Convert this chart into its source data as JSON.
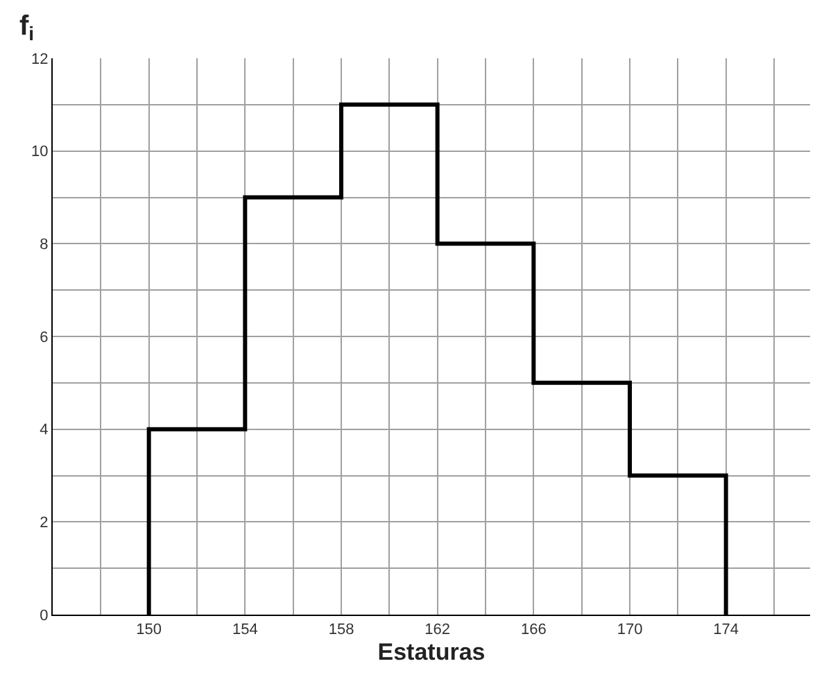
{
  "chart_data": {
    "type": "histogram",
    "xlabel": "Estaturas",
    "ylabel": "f$_{i}$",
    "bins": [
      150,
      154,
      158,
      162,
      166,
      170,
      174
    ],
    "values": [
      4,
      9,
      11,
      8,
      5,
      3
    ],
    "color": "#000000",
    "xlim": [
      146,
      177.5
    ],
    "xticks": [
      {
        "value": 146,
        "label": null
      },
      {
        "value": 148,
        "label": null
      },
      150,
      {
        "value": 152,
        "label": null
      },
      154,
      {
        "value": 156,
        "label": null
      },
      158,
      {
        "value": 160,
        "label": null
      },
      162,
      {
        "value": 164,
        "label": null
      },
      166,
      {
        "value": 168,
        "label": null
      },
      170,
      {
        "value": 172,
        "label": null
      },
      174,
      {
        "value": 176,
        "label": null
      }
    ],
    "ylim": [
      0,
      12
    ],
    "yticks": [
      0,
      {
        "value": 1,
        "label": null
      },
      2,
      {
        "value": 3,
        "label": null
      },
      4,
      {
        "value": 5,
        "label": null
      },
      6,
      {
        "value": 7,
        "label": null
      },
      8,
      {
        "value": 9,
        "label": null
      },
      10,
      {
        "value": 11,
        "label": null
      },
      12
    ],
    "grid": true
  }
}
